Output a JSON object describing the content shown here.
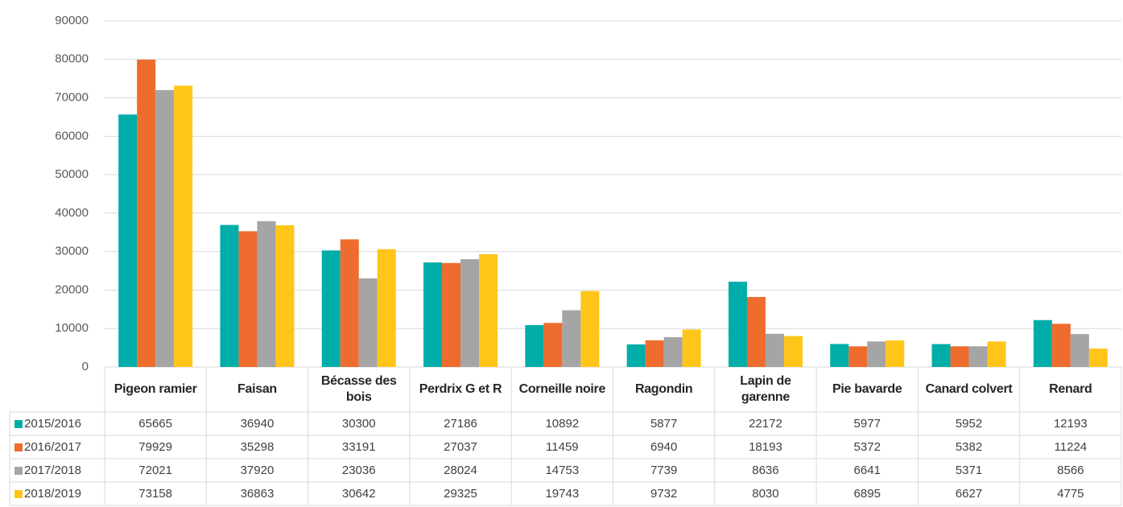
{
  "chart_data": {
    "type": "bar",
    "categories": [
      "Pigeon ramier",
      "Faisan",
      "Bécasse des bois",
      "Perdrix G et R",
      "Corneille noire",
      "Ragondin",
      "Lapin de garenne",
      "Pie bavarde",
      "Canard colvert",
      "Renard"
    ],
    "series": [
      {
        "name": "2015/2016",
        "color": "#00ada9",
        "values": [
          65665,
          36940,
          30300,
          27186,
          10892,
          5877,
          22172,
          5977,
          5952,
          12193
        ]
      },
      {
        "name": "2016/2017",
        "color": "#ee6c2d",
        "values": [
          79929,
          35298,
          33191,
          27037,
          11459,
          6940,
          18193,
          5372,
          5382,
          11224
        ]
      },
      {
        "name": "2017/2018",
        "color": "#a5a5a5",
        "values": [
          72021,
          37920,
          23036,
          28024,
          14753,
          7739,
          8636,
          6641,
          5371,
          8566
        ]
      },
      {
        "name": "2018/2019",
        "color": "#ffc519",
        "values": [
          73158,
          36863,
          30642,
          29325,
          19743,
          9732,
          8030,
          6895,
          6627,
          4775
        ]
      }
    ],
    "ylim": [
      0,
      90000
    ],
    "yticks": [
      0,
      10000,
      20000,
      30000,
      40000,
      50000,
      60000,
      70000,
      80000,
      90000
    ],
    "grid": true
  }
}
